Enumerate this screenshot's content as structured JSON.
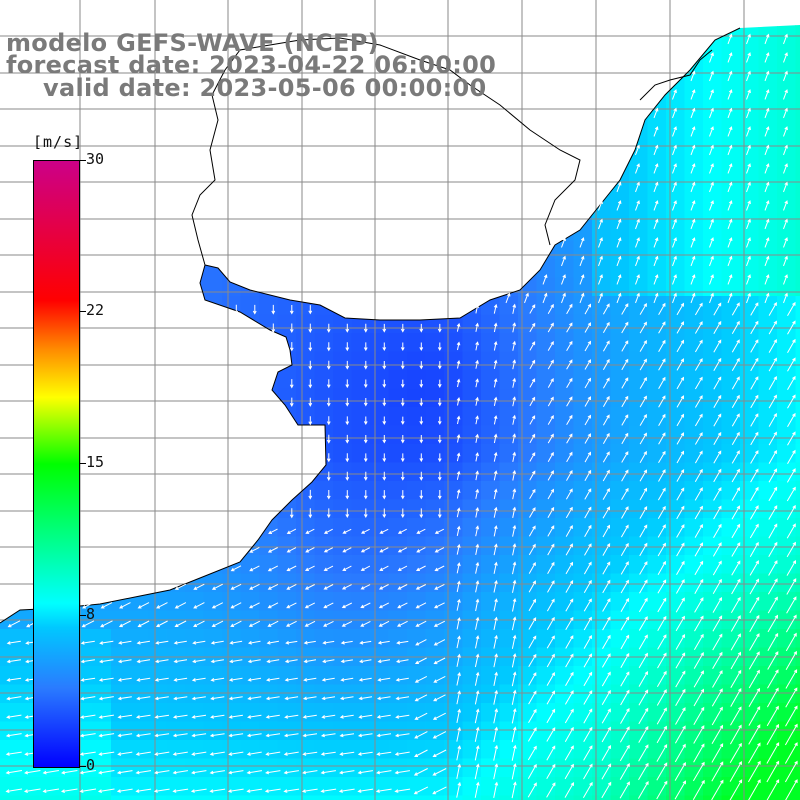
{
  "title": {
    "line1": "modelo GEFS-WAVE (NCEP)",
    "line2": "forecast date: 2023-04-22 06:00:00",
    "line3": "valid date: 2023-05-06 00:00:00"
  },
  "colorbar": {
    "unit": "[m/s]",
    "ticks": [
      "30",
      "22",
      "15",
      "8",
      "0"
    ],
    "tick_values": [
      30,
      22,
      15,
      8,
      0
    ],
    "range": [
      0,
      30
    ],
    "colors": [
      "#0000ff",
      "#2a7bff",
      "#00c8ff",
      "#00ffff",
      "#00ff00",
      "#ffff00",
      "#ff8a00",
      "#ff0000",
      "#cc0088"
    ]
  },
  "map": {
    "field": "wind speed and direction",
    "land_color": "#ffffff",
    "coast_color": "#000000",
    "grid_color": "#888888",
    "arrow_color": "#ffffff"
  }
}
